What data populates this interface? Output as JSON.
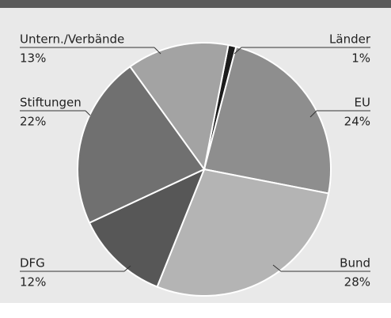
{
  "chart_data": {
    "type": "pie",
    "categories": [
      "Länder",
      "EU",
      "Bund",
      "DFG",
      "Stiftungen",
      "Untern./Verbände"
    ],
    "values": [
      1,
      24,
      28,
      12,
      22,
      13
    ],
    "value_labels": [
      "1%",
      "24%",
      "28%",
      "12%",
      "22%",
      "13%"
    ],
    "colors": [
      "#1c1c1c",
      "#8e8e8e",
      "#b4b4b4",
      "#575757",
      "#707070",
      "#a3a3a3"
    ]
  }
}
